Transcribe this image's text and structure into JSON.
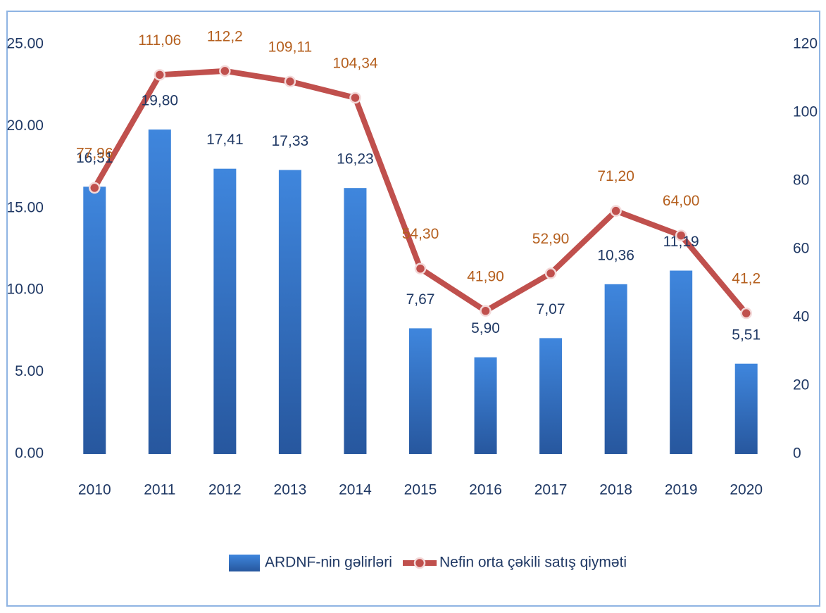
{
  "chart_data": {
    "type": "bar",
    "categories": [
      "2010",
      "2011",
      "2012",
      "2013",
      "2014",
      "2015",
      "2016",
      "2017",
      "2018",
      "2019",
      "2020"
    ],
    "series": [
      {
        "name": "ARDNF-nin gəlirləri",
        "color": "#3a78cc",
        "values": [
          16.31,
          19.8,
          17.41,
          17.33,
          16.23,
          7.67,
          5.9,
          7.07,
          10.36,
          11.19,
          5.51
        ],
        "value_labels": [
          "16,31",
          "19,80",
          "17,41",
          "17,33",
          "16,23",
          "7,67",
          "5,90",
          "7,07",
          "10,36",
          "11,19",
          "5,51"
        ]
      },
      {
        "name": "Nefin orta çəkili satış qiyməti",
        "color": "#c0504d",
        "type": "line",
        "axis": "y2",
        "values": [
          77.96,
          111.06,
          112.2,
          109.11,
          104.34,
          54.3,
          41.9,
          52.9,
          71.2,
          64.0,
          41.2
        ],
        "value_labels": [
          "77,96",
          "111,06",
          "112,2",
          "109,11",
          "104,34",
          "54,30",
          "41,90",
          "52,90",
          "71,20",
          "64,00",
          "41,2"
        ]
      }
    ],
    "ylim": [
      0,
      25
    ],
    "yticks": [
      {
        "value": 0,
        "label": "0.00"
      },
      {
        "value": 5,
        "label": "5.00"
      },
      {
        "value": 10,
        "label": "10.00"
      },
      {
        "value": 15,
        "label": "15.00"
      },
      {
        "value": 20,
        "label": "20.00"
      },
      {
        "value": 25,
        "label": "25.00"
      }
    ],
    "y2lim": [
      0,
      120
    ],
    "y2ticks": [
      0,
      20,
      40,
      60,
      80,
      100,
      120
    ],
    "legend": "bottom"
  }
}
